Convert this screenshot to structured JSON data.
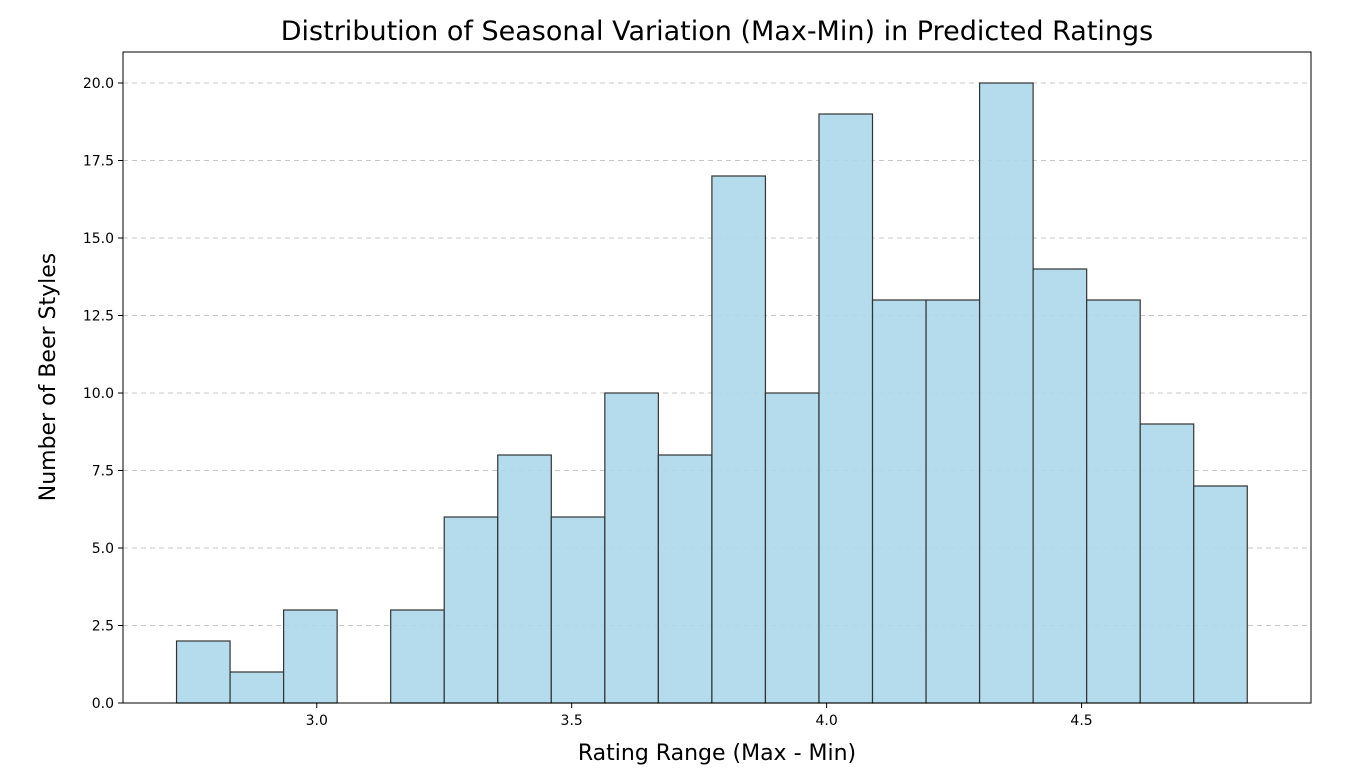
{
  "chart_data": {
    "type": "bar",
    "subtype": "histogram",
    "title": "Distribution of Seasonal Variation (Max-Min) in Predicted Ratings",
    "xlabel": "Rating Range (Max - Min)",
    "ylabel": "Number of Beer Styles",
    "xlim": [
      2.62,
      4.95
    ],
    "ylim": [
      0,
      21
    ],
    "x_ticks": [
      "3.0",
      "3.5",
      "4.0",
      "4.5"
    ],
    "y_ticks": [
      "0.0",
      "2.5",
      "5.0",
      "7.5",
      "10.0",
      "12.5",
      "15.0",
      "17.5",
      "20.0"
    ],
    "grid": "y-dashed",
    "bins": [
      {
        "start": 2.725,
        "end": 2.83,
        "count": 2
      },
      {
        "start": 2.83,
        "end": 2.935,
        "count": 1
      },
      {
        "start": 2.935,
        "end": 3.04,
        "count": 3
      },
      {
        "start": 3.04,
        "end": 3.145,
        "count": 0
      },
      {
        "start": 3.145,
        "end": 3.25,
        "count": 3
      },
      {
        "start": 3.25,
        "end": 3.355,
        "count": 6
      },
      {
        "start": 3.355,
        "end": 3.46,
        "count": 8
      },
      {
        "start": 3.46,
        "end": 3.565,
        "count": 6
      },
      {
        "start": 3.565,
        "end": 3.67,
        "count": 10
      },
      {
        "start": 3.67,
        "end": 3.775,
        "count": 8
      },
      {
        "start": 3.775,
        "end": 3.88,
        "count": 17
      },
      {
        "start": 3.88,
        "end": 3.985,
        "count": 10
      },
      {
        "start": 3.985,
        "end": 4.09,
        "count": 19
      },
      {
        "start": 4.09,
        "end": 4.195,
        "count": 13
      },
      {
        "start": 4.195,
        "end": 4.3,
        "count": 13
      },
      {
        "start": 4.3,
        "end": 4.405,
        "count": 20
      },
      {
        "start": 4.405,
        "end": 4.51,
        "count": 14
      },
      {
        "start": 4.51,
        "end": 4.615,
        "count": 13
      },
      {
        "start": 4.615,
        "end": 4.72,
        "count": 9
      },
      {
        "start": 4.72,
        "end": 4.825,
        "count": 7
      }
    ],
    "colors": {
      "bar_fill": "#add8eb",
      "bar_edge": "#333333",
      "grid": "#c8c8c8"
    }
  }
}
